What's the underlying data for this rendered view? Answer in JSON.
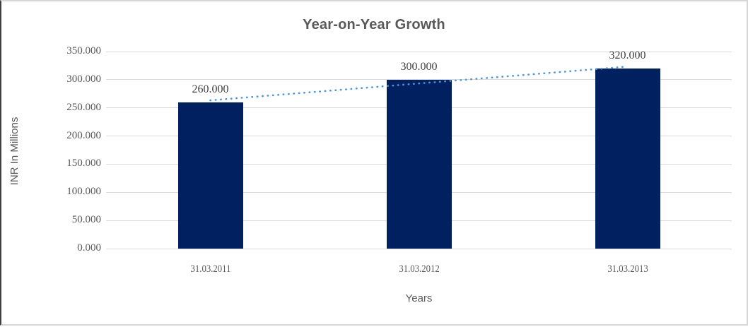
{
  "chart_data": {
    "type": "bar",
    "title": "Year-on-Year Growth",
    "xlabel": "Years",
    "ylabel": "INR In Millions",
    "categories": [
      "31.03.2011",
      "31.03.2012",
      "31.03.2013"
    ],
    "values": [
      260,
      300,
      320
    ],
    "value_labels": [
      "260.000",
      "300.000",
      "320.000"
    ],
    "ylim": [
      0,
      350
    ],
    "ytick_step": 50,
    "ytick_labels": [
      "0.000",
      "50.000",
      "100.000",
      "150.000",
      "200.000",
      "250.000",
      "300.000",
      "350.000"
    ],
    "grid": true,
    "legend": "none",
    "trendline": {
      "type": "linear",
      "style": "dotted",
      "endpoint_values": [
        263.333,
        323.333
      ]
    },
    "colors": {
      "bar": "#002060",
      "trend": "#4e95d9",
      "grid": "#d9d9d9",
      "text": "#595959",
      "title": "#595959"
    }
  }
}
